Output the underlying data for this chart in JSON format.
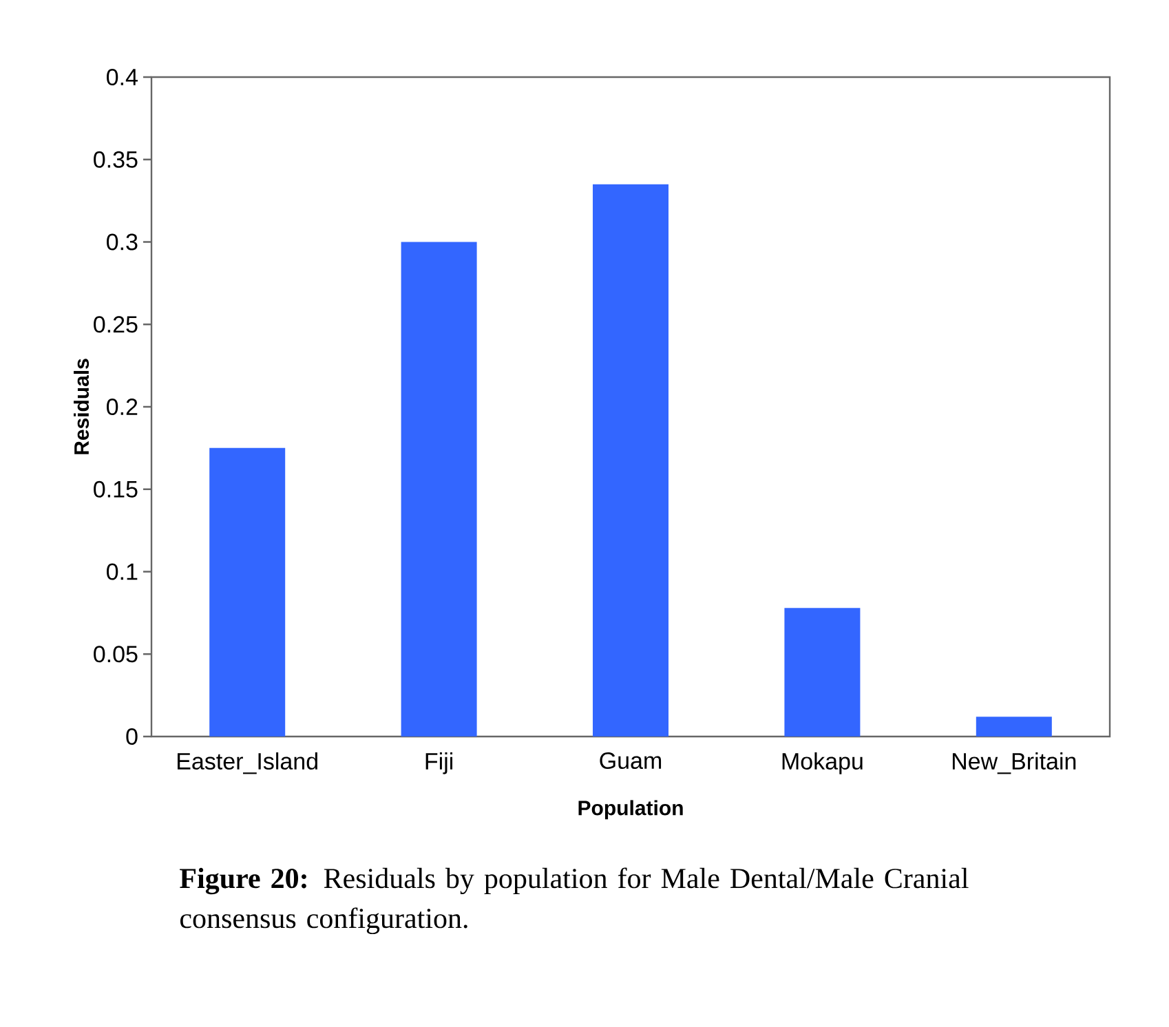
{
  "chart_data": {
    "type": "bar",
    "xlabel": "Population",
    "ylabel": "Residuals",
    "categories": [
      "Easter_Island",
      "Fiji",
      "Guam",
      "Mokapu",
      "New_Britain"
    ],
    "values": [
      0.175,
      0.3,
      0.335,
      0.078,
      0.012
    ],
    "color": "#3366ff",
    "ylim": [
      0,
      0.4
    ],
    "yticks": [
      0,
      0.05,
      0.1,
      0.15,
      0.2,
      0.25,
      0.3,
      0.35,
      0.4
    ],
    "annotations": [
      "**Figure 20:** Residuals by population for Male Dental/Male Cranial consensus configuration."
    ]
  }
}
